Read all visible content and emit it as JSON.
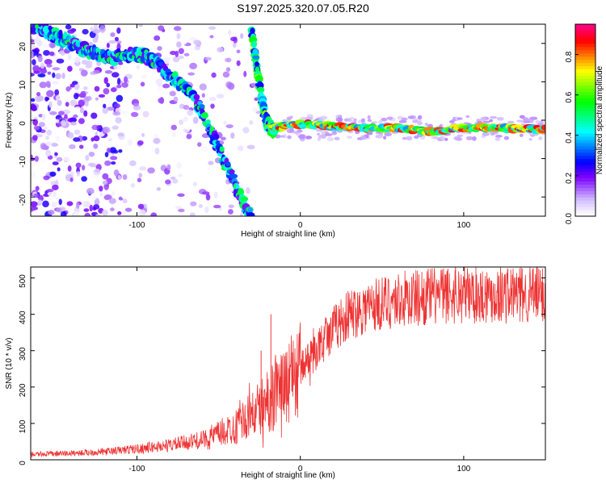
{
  "title": "S197.2025.320.07.05.R20",
  "colors": {
    "snr_line": "#ee3333",
    "axis": "#000000"
  },
  "chart_data": [
    {
      "type": "heatmap",
      "title": "",
      "xlabel": "Height of straight line (km)",
      "ylabel": "Frequency (Hz)",
      "xlim": [
        -165,
        150
      ],
      "ylim": [
        -25,
        25
      ],
      "xticks": [
        -100,
        0,
        100
      ],
      "yticks": [
        -20,
        -10,
        0,
        10,
        20
      ],
      "colorbar": {
        "label": "Normalized spectral amplitude",
        "range": [
          0,
          0.95
        ],
        "ticks": [
          0.0,
          0.2,
          0.4,
          0.6,
          0.8
        ]
      },
      "ridges": [
        {
          "name": "descending-arc",
          "x": [
            -165,
            -150,
            -130,
            -115,
            -105,
            -95,
            -88,
            -82,
            -75,
            -70,
            -65,
            -60,
            -55,
            -50,
            -45,
            -40,
            -35,
            -30
          ],
          "y": [
            25,
            22,
            18,
            16,
            17,
            17,
            15,
            12,
            10,
            8,
            6,
            2,
            -3,
            -7,
            -12,
            -17,
            -21,
            -25
          ]
        },
        {
          "name": "steep-drop",
          "x": [
            -30,
            -28,
            -26,
            -24,
            -22,
            -20,
            -18,
            -16
          ],
          "y": [
            24,
            18,
            12,
            6,
            2,
            -1,
            -2,
            -3
          ]
        },
        {
          "name": "flat-trace",
          "x": [
            -16,
            0,
            20,
            40,
            60,
            80,
            100,
            120,
            150
          ],
          "y": [
            -2,
            -1,
            -1.5,
            -2,
            -2,
            -3,
            -2,
            -2,
            -2.5
          ]
        }
      ]
    },
    {
      "type": "line",
      "title": "",
      "xlabel": "Height of straight line (km)",
      "ylabel": "SNR (10 * v/v)",
      "xlim": [
        -165,
        150
      ],
      "ylim": [
        0,
        530
      ],
      "xticks": [
        -100,
        0,
        100
      ],
      "yticks": [
        0,
        100,
        200,
        300,
        400,
        500
      ],
      "trend": {
        "x": [
          -165,
          -140,
          -120,
          -100,
          -80,
          -60,
          -50,
          -40,
          -30,
          -20,
          -10,
          0,
          10,
          20,
          30,
          40,
          60,
          80,
          100,
          120,
          150
        ],
        "y": [
          15,
          18,
          22,
          30,
          40,
          55,
          70,
          90,
          120,
          160,
          200,
          250,
          300,
          360,
          400,
          420,
          440,
          450,
          455,
          455,
          455
        ]
      },
      "spikes": [
        {
          "x": -18,
          "y": 400
        },
        {
          "x": -24,
          "y": 300
        },
        {
          "x": 95,
          "y": 530
        },
        {
          "x": 125,
          "y": 510
        }
      ]
    }
  ]
}
